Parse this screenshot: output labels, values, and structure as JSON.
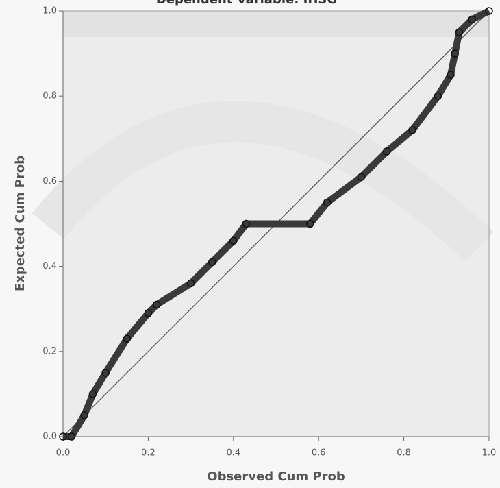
{
  "chart_data": {
    "type": "scatter",
    "title": "Dependent Variable: IHSG",
    "x_label": "Observed Cum Prob",
    "y_label": "Expected Cum Prob",
    "x": [
      0.0,
      0.02,
      0.05,
      0.07,
      0.1,
      0.15,
      0.2,
      0.22,
      0.3,
      0.35,
      0.4,
      0.43,
      0.58,
      0.62,
      0.7,
      0.76,
      0.82,
      0.88,
      0.91,
      0.92,
      0.93,
      0.96,
      1.0
    ],
    "series": [
      {
        "color": "#3a3a3a",
        "values": [
          0.0,
          0.0,
          0.05,
          0.1,
          0.15,
          0.23,
          0.29,
          0.31,
          0.36,
          0.41,
          0.46,
          0.5,
          0.5,
          0.55,
          0.61,
          0.67,
          0.72,
          0.8,
          0.85,
          0.9,
          0.95,
          0.98,
          1.0
        ]
      }
    ],
    "xlim": [
      0,
      1
    ],
    "ylim": [
      0,
      1
    ],
    "xticks": [
      {
        "value": 0,
        "label": "0.0"
      },
      0.2,
      0.4,
      0.6,
      0.8,
      {
        "value": 1,
        "label": "1.0"
      }
    ],
    "yticks": [
      {
        "value": 0,
        "label": "0.0"
      },
      0.2,
      0.4,
      0.6,
      0.8,
      {
        "value": 1,
        "label": "1.0"
      }
    ],
    "reference_line": true
  }
}
